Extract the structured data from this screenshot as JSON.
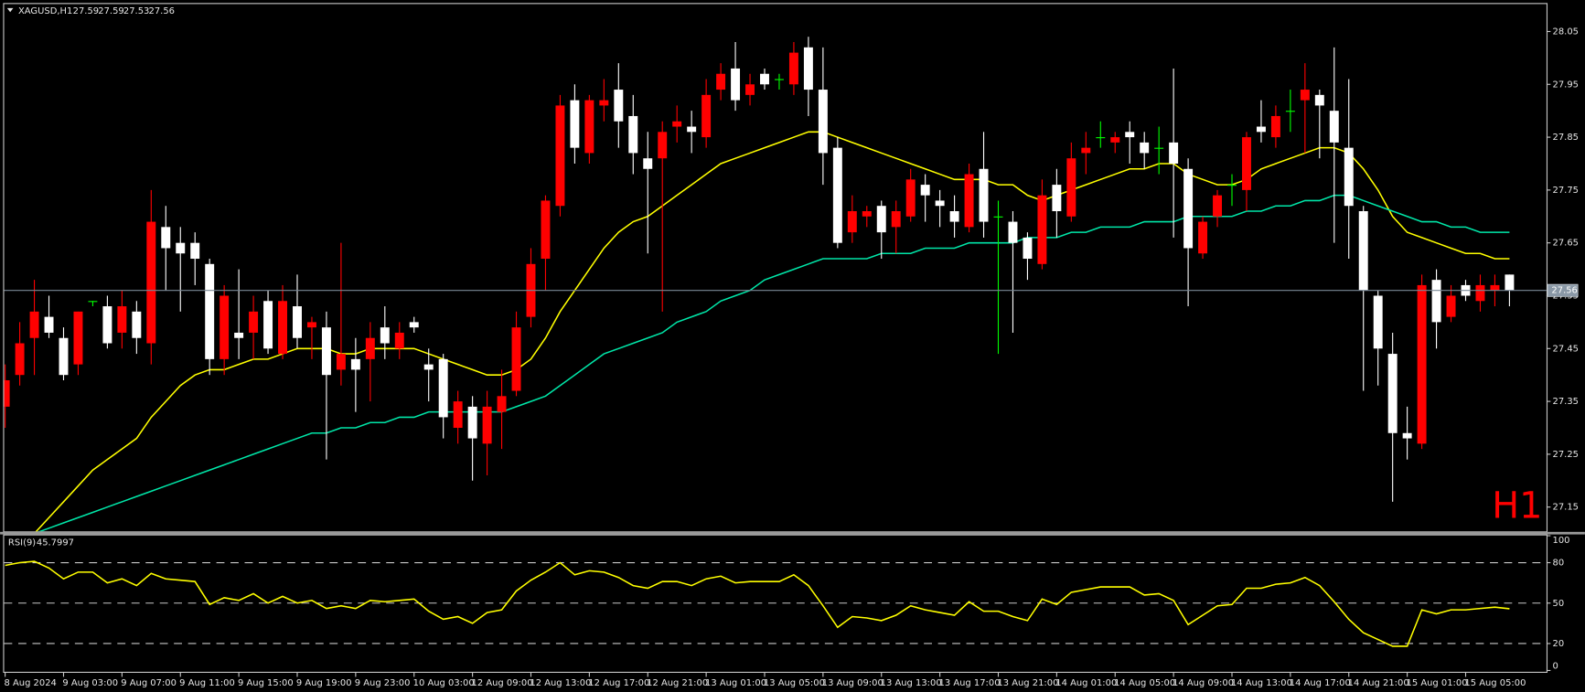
{
  "chart_data": [
    {
      "type": "candlestick",
      "title": "XAGUSD,H1",
      "categories": [
        "8 Aug 2024",
        null,
        null,
        null,
        "9 Aug 03:00",
        null,
        null,
        null,
        "9 Aug 07:00",
        null,
        null,
        null,
        "9 Aug 11:00",
        null,
        null,
        null,
        "9 Aug 15:00",
        null,
        null,
        null,
        "9 Aug 19:00",
        null,
        null,
        null,
        "9 Aug 23:00",
        null,
        null,
        null,
        "10 Aug 03:00",
        null,
        null,
        null,
        "12 Aug 09:00",
        null,
        null,
        null,
        "12 Aug 13:00",
        null,
        null,
        null,
        "12 Aug 17:00",
        null,
        null,
        null,
        "12 Aug 21:00",
        null,
        null,
        null,
        "13 Aug 01:00",
        null,
        null,
        null,
        "13 Aug 05:00",
        null,
        null,
        null,
        "13 Aug 09:00",
        null,
        null,
        null,
        "13 Aug 13:00",
        null,
        null,
        null,
        "13 Aug 17:00",
        null,
        null,
        null,
        "13 Aug 21:00",
        null,
        null,
        null,
        "14 Aug 01:00",
        null,
        null,
        null,
        "14 Aug 05:00",
        null,
        null,
        null,
        "14 Aug 09:00",
        null,
        null,
        null,
        "14 Aug 13:00",
        null,
        null,
        null,
        "14 Aug 17:00",
        null,
        null,
        null,
        "14 Aug 21:00",
        null,
        null,
        null,
        "15 Aug 01:00",
        null,
        null,
        null,
        "15 Aug 05:00",
        null,
        null,
        null
      ],
      "open": [
        27.34,
        27.4,
        27.47,
        27.51,
        27.47,
        27.42,
        27.54,
        27.53,
        27.48,
        27.52,
        27.46,
        27.68,
        27.65,
        27.65,
        27.61,
        27.43,
        27.48,
        27.48,
        27.54,
        27.44,
        27.53,
        27.49,
        27.49,
        27.41,
        27.43,
        27.43,
        27.49,
        27.45,
        27.5,
        27.42,
        27.43,
        27.3,
        27.34,
        27.27,
        27.33,
        27.37,
        27.51,
        27.62,
        27.72,
        27.92,
        27.82,
        27.91,
        27.94,
        27.89,
        27.81,
        27.81,
        27.87,
        27.87,
        27.85,
        27.94,
        27.98,
        27.93,
        27.97,
        27.96,
        27.95,
        28.02,
        27.94,
        27.83,
        27.67,
        27.7,
        27.72,
        27.68,
        27.7,
        27.76,
        27.73,
        27.71,
        27.68,
        27.79,
        27.7,
        27.69,
        27.66,
        27.61,
        27.76,
        27.7,
        27.82,
        27.85,
        27.84,
        27.86,
        27.84,
        27.83,
        27.84,
        27.79,
        27.63,
        27.7,
        27.76,
        27.75,
        27.87,
        27.85,
        27.9,
        27.92,
        27.93,
        27.9,
        27.83,
        27.71,
        27.55,
        27.44,
        27.29,
        27.27,
        27.58,
        27.51,
        27.57,
        27.54,
        27.56,
        27.59
      ],
      "high": [
        27.42,
        27.5,
        27.58,
        27.55,
        27.49,
        27.52,
        27.54,
        27.55,
        27.56,
        27.54,
        27.75,
        27.72,
        27.68,
        27.67,
        27.62,
        27.57,
        27.6,
        27.55,
        27.56,
        27.57,
        27.59,
        27.51,
        27.52,
        27.65,
        27.47,
        27.5,
        27.53,
        27.5,
        27.51,
        27.45,
        27.44,
        27.37,
        27.36,
        27.37,
        27.41,
        27.52,
        27.64,
        27.74,
        27.93,
        27.95,
        27.93,
        27.96,
        27.99,
        27.93,
        27.86,
        27.88,
        27.91,
        27.9,
        27.96,
        27.99,
        28.03,
        27.97,
        27.98,
        27.97,
        28.03,
        28.04,
        28.02,
        27.85,
        27.74,
        27.72,
        27.73,
        27.73,
        27.79,
        27.78,
        27.75,
        27.74,
        27.8,
        27.86,
        27.73,
        27.71,
        27.67,
        27.77,
        27.79,
        27.84,
        27.86,
        27.88,
        27.86,
        27.88,
        27.86,
        27.87,
        27.98,
        27.81,
        27.7,
        27.75,
        27.78,
        27.86,
        27.92,
        27.91,
        27.94,
        27.99,
        27.94,
        28.02,
        27.96,
        27.72,
        27.56,
        27.48,
        27.34,
        27.59,
        27.6,
        27.57,
        27.58,
        27.59,
        27.59,
        27.59
      ],
      "low": [
        27.3,
        27.38,
        27.4,
        27.47,
        27.39,
        27.4,
        27.53,
        27.45,
        27.45,
        27.44,
        27.42,
        27.56,
        27.52,
        27.57,
        27.4,
        27.4,
        27.43,
        27.43,
        27.44,
        27.43,
        27.45,
        27.43,
        27.24,
        27.38,
        27.33,
        27.35,
        27.43,
        27.43,
        27.48,
        27.35,
        27.28,
        27.27,
        27.2,
        27.21,
        27.26,
        27.36,
        27.49,
        27.56,
        27.7,
        27.8,
        27.8,
        27.88,
        27.83,
        27.78,
        27.63,
        27.52,
        27.84,
        27.82,
        27.83,
        27.92,
        27.9,
        27.91,
        27.94,
        27.94,
        27.93,
        27.89,
        27.76,
        27.64,
        27.65,
        27.68,
        27.62,
        27.63,
        27.69,
        27.69,
        27.68,
        27.66,
        27.67,
        27.66,
        27.44,
        27.48,
        27.58,
        27.6,
        27.66,
        27.69,
        27.78,
        27.83,
        27.82,
        27.8,
        27.79,
        27.78,
        27.66,
        27.53,
        27.62,
        27.68,
        27.72,
        27.71,
        27.84,
        27.83,
        27.86,
        27.82,
        27.81,
        27.65,
        27.62,
        27.37,
        27.38,
        27.16,
        27.24,
        27.26,
        27.45,
        27.5,
        27.54,
        27.52,
        27.53,
        27.53
      ],
      "close": [
        27.39,
        27.46,
        27.52,
        27.48,
        27.4,
        27.52,
        27.54,
        27.46,
        27.53,
        27.47,
        27.69,
        27.64,
        27.63,
        27.62,
        27.43,
        27.55,
        27.47,
        27.52,
        27.45,
        27.54,
        27.47,
        27.5,
        27.4,
        27.44,
        27.41,
        27.47,
        27.46,
        27.48,
        27.49,
        27.41,
        27.32,
        27.35,
        27.28,
        27.34,
        27.36,
        27.49,
        27.61,
        27.73,
        27.91,
        27.83,
        27.92,
        27.92,
        27.88,
        27.82,
        27.79,
        27.86,
        27.88,
        27.86,
        27.93,
        27.97,
        27.92,
        27.95,
        27.95,
        27.96,
        28.01,
        27.94,
        27.82,
        27.65,
        27.71,
        27.71,
        27.67,
        27.71,
        27.77,
        27.74,
        27.72,
        27.69,
        27.78,
        27.69,
        27.7,
        27.65,
        27.62,
        27.74,
        27.71,
        27.81,
        27.83,
        27.85,
        27.85,
        27.85,
        27.82,
        27.83,
        27.8,
        27.64,
        27.69,
        27.74,
        27.76,
        27.85,
        27.86,
        27.89,
        27.9,
        27.94,
        27.91,
        27.84,
        27.72,
        27.56,
        27.45,
        27.29,
        27.28,
        27.57,
        27.5,
        27.55,
        27.55,
        27.57,
        27.57,
        27.56
      ],
      "up_color": "#ff0000",
      "down_color": "#ffffff",
      "doji_color": "#00ff00",
      "series": [
        {
          "color": "#ffff00",
          "values": [
            null,
            null,
            27.1,
            27.13,
            27.16,
            27.19,
            27.22,
            27.24,
            27.26,
            27.28,
            27.32,
            27.35,
            27.38,
            27.4,
            27.41,
            27.41,
            27.42,
            27.43,
            27.43,
            27.44,
            27.45,
            27.45,
            27.45,
            27.44,
            27.44,
            27.45,
            27.45,
            27.45,
            27.45,
            27.44,
            27.43,
            27.42,
            27.41,
            27.4,
            27.4,
            27.41,
            27.43,
            27.47,
            27.52,
            27.56,
            27.6,
            27.64,
            27.67,
            27.69,
            27.7,
            27.72,
            27.74,
            27.76,
            27.78,
            27.8,
            27.81,
            27.82,
            27.83,
            27.84,
            27.85,
            27.86,
            27.86,
            27.85,
            27.84,
            27.83,
            27.82,
            27.81,
            27.8,
            27.79,
            27.78,
            27.77,
            27.77,
            27.77,
            27.76,
            27.76,
            27.74,
            27.73,
            27.74,
            27.75,
            27.76,
            27.77,
            27.78,
            27.79,
            27.79,
            27.8,
            27.8,
            27.78,
            27.77,
            27.76,
            27.76,
            27.77,
            27.79,
            27.8,
            27.81,
            27.82,
            27.83,
            27.83,
            27.82,
            27.79,
            27.75,
            27.7,
            27.67,
            27.66,
            27.65,
            27.64,
            27.63,
            27.63,
            27.62,
            27.62
          ]
        },
        {
          "color": "#00e6a8",
          "values": [
            null,
            null,
            27.1,
            27.11,
            27.12,
            27.13,
            27.14,
            27.15,
            27.16,
            27.17,
            27.18,
            27.19,
            27.2,
            27.21,
            27.22,
            27.23,
            27.24,
            27.25,
            27.26,
            27.27,
            27.28,
            27.29,
            27.29,
            27.3,
            27.3,
            27.31,
            27.31,
            27.32,
            27.32,
            27.33,
            27.33,
            27.33,
            27.33,
            27.33,
            27.33,
            27.34,
            27.35,
            27.36,
            27.38,
            27.4,
            27.42,
            27.44,
            27.45,
            27.46,
            27.47,
            27.48,
            27.5,
            27.51,
            27.52,
            27.54,
            27.55,
            27.56,
            27.58,
            27.59,
            27.6,
            27.61,
            27.62,
            27.62,
            27.62,
            27.62,
            27.63,
            27.63,
            27.63,
            27.64,
            27.64,
            27.64,
            27.65,
            27.65,
            27.65,
            27.65,
            27.66,
            27.66,
            27.66,
            27.67,
            27.67,
            27.68,
            27.68,
            27.68,
            27.69,
            27.69,
            27.69,
            27.7,
            27.7,
            27.7,
            27.7,
            27.71,
            27.71,
            27.72,
            27.72,
            27.73,
            27.73,
            27.74,
            27.74,
            27.73,
            27.72,
            27.71,
            27.7,
            27.69,
            27.69,
            27.68,
            27.68,
            27.67,
            27.67,
            27.67
          ]
        }
      ],
      "ylim": [
        27.104,
        28.102
      ],
      "yticks": [
        28.05,
        27.95,
        27.85,
        27.75,
        27.65,
        27.55,
        27.45,
        27.35,
        27.25,
        27.15
      ],
      "last_price_line": true,
      "period_label": "H1",
      "period_label_color": "#ff0000"
    },
    {
      "type": "line",
      "title": "RSI(9)",
      "values": [
        78,
        80,
        81,
        76,
        68,
        73,
        73,
        65,
        68,
        63,
        72,
        68,
        67,
        66,
        49,
        54,
        52,
        57,
        50,
        55,
        50,
        52,
        46,
        48,
        46,
        52,
        51,
        52,
        53,
        44,
        38,
        40,
        35,
        43,
        45,
        59,
        67,
        73,
        80,
        71,
        74,
        73,
        69,
        63,
        61,
        66,
        66,
        63,
        68,
        70,
        65,
        66,
        66,
        66,
        71,
        63,
        48,
        32,
        40,
        39,
        37,
        41,
        48,
        45,
        43,
        41,
        51,
        44,
        44,
        40,
        37,
        53,
        49,
        58,
        60,
        62,
        62,
        62,
        56,
        57,
        52,
        34,
        41,
        48,
        49,
        61,
        61,
        64,
        65,
        69,
        63,
        51,
        38,
        28,
        23,
        18,
        18,
        45,
        42,
        45,
        45,
        46,
        47,
        45.7997
      ],
      "color": "#ffff00",
      "ylim": [
        0,
        100
      ],
      "yticks": [
        100,
        80,
        50,
        20,
        0
      ],
      "levels": [
        80,
        50,
        20
      ]
    }
  ]
}
